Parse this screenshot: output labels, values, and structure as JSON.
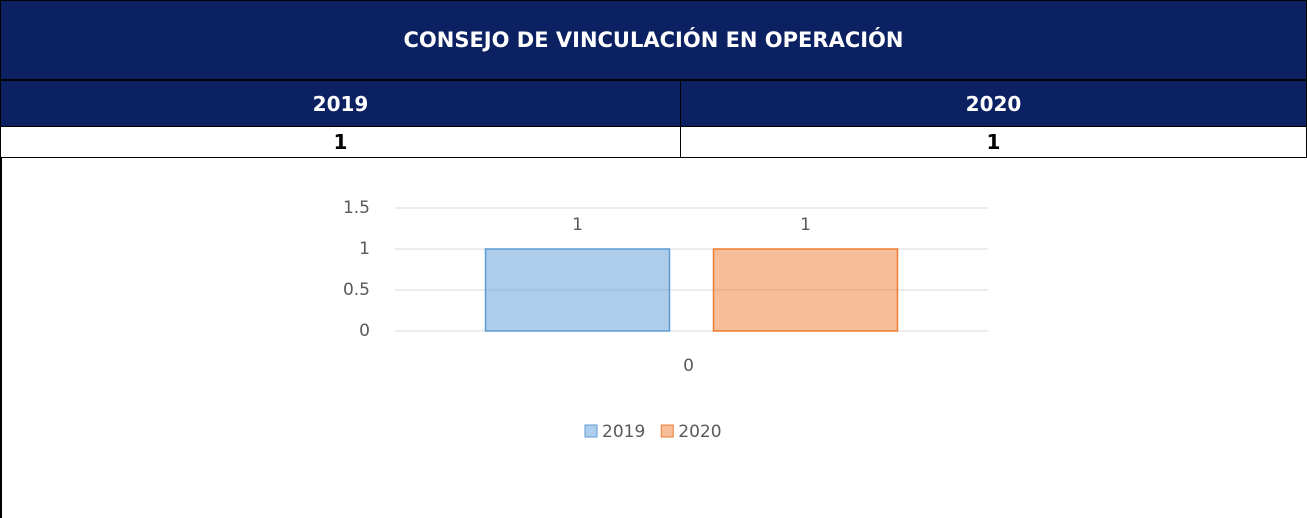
{
  "table": {
    "title": "CONSEJO DE VINCULACIÓN EN OPERACIÓN",
    "headers": [
      "2019",
      "2020"
    ],
    "rows": [
      [
        1,
        1
      ]
    ]
  },
  "chart_data": {
    "type": "bar",
    "categories": [
      "0"
    ],
    "series": [
      {
        "name": "2019",
        "color": "#5b9bd5",
        "values": [
          1
        ]
      },
      {
        "name": "2020",
        "color": "#ed7d31",
        "values": [
          1
        ]
      }
    ],
    "ylim": [
      0,
      1.5
    ],
    "yticks": [
      0,
      0.5,
      1,
      1.5
    ],
    "grid": true,
    "legend": "bottom"
  }
}
